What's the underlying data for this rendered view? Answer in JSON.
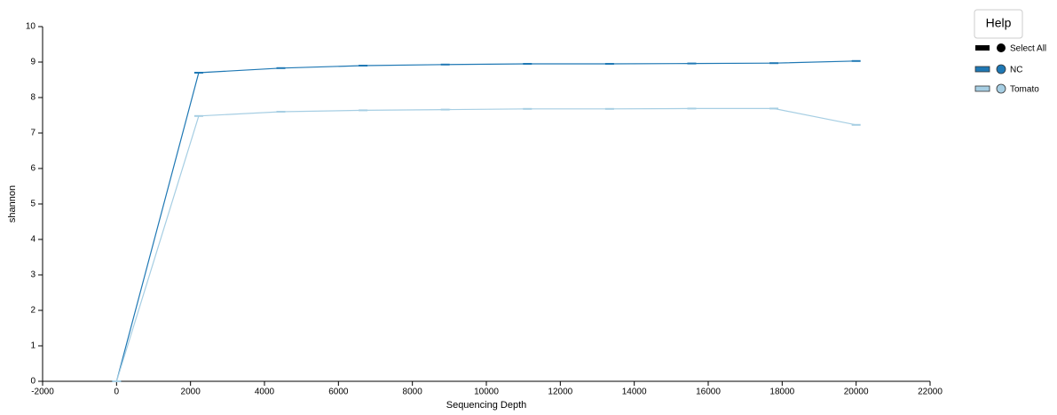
{
  "chart_data": {
    "type": "line",
    "help": "Help",
    "select_all": "Select All",
    "xlabel": "Sequencing Depth",
    "ylabel": "shannon",
    "x": [
      1,
      2222,
      4444,
      6666,
      8888,
      11111,
      13333,
      15555,
      17777,
      20000
    ],
    "series": [
      {
        "name": "NC",
        "color": "#1f78b4",
        "values": [
          0,
          8.7,
          8.83,
          8.9,
          8.93,
          8.95,
          8.95,
          8.96,
          8.97,
          9.03
        ]
      },
      {
        "name": "Tomato",
        "color": "#a6cee3",
        "values": [
          0,
          7.48,
          7.6,
          7.64,
          7.66,
          7.68,
          7.68,
          7.69,
          7.69,
          7.23
        ]
      }
    ],
    "xlim": [
      -2000,
      22000
    ],
    "xticks": [
      -2000,
      0,
      2000,
      4000,
      6000,
      8000,
      10000,
      12000,
      14000,
      16000,
      18000,
      20000,
      22000
    ],
    "ylim": [
      0,
      10
    ],
    "yticks": [
      0,
      1,
      2,
      3,
      4,
      5,
      6,
      7,
      8,
      9,
      10
    ]
  }
}
